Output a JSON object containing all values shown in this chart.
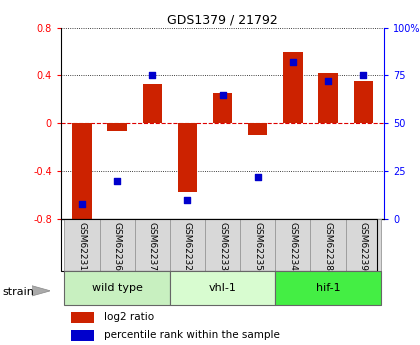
{
  "title": "GDS1379 / 21792",
  "samples": [
    "GSM62231",
    "GSM62236",
    "GSM62237",
    "GSM62232",
    "GSM62233",
    "GSM62235",
    "GSM62234",
    "GSM62238",
    "GSM62239"
  ],
  "log2_ratio": [
    -0.82,
    -0.06,
    0.33,
    -0.57,
    0.25,
    -0.1,
    0.6,
    0.42,
    0.35
  ],
  "percentile_rank": [
    8,
    20,
    75,
    10,
    65,
    22,
    82,
    72,
    75
  ],
  "groups": [
    {
      "label": "wild type",
      "indices": [
        0,
        1,
        2
      ],
      "color": "#c8f0c0"
    },
    {
      "label": "vhl-1",
      "indices": [
        3,
        4,
        5
      ],
      "color": "#d8fcd0"
    },
    {
      "label": "hif-1",
      "indices": [
        6,
        7,
        8
      ],
      "color": "#44ee44"
    }
  ],
  "ylim": [
    -0.8,
    0.8
  ],
  "yticks": [
    -0.8,
    -0.4,
    0.0,
    0.4,
    0.8
  ],
  "ytick_labels": [
    "-0.8",
    "-0.4",
    "0",
    "0.4",
    "0.8"
  ],
  "y2tick_labels": [
    "0",
    "25",
    "50",
    "75",
    "100%"
  ],
  "bar_color": "#cc2200",
  "dot_color": "#0000cc",
  "hline_color": "#dd0000",
  "grid_color": "#000000",
  "legend_red_label": "log2 ratio",
  "legend_blue_label": "percentile rank within the sample",
  "strain_label": "strain",
  "sample_box_color": "#d8d8d8",
  "bar_width": 0.55
}
